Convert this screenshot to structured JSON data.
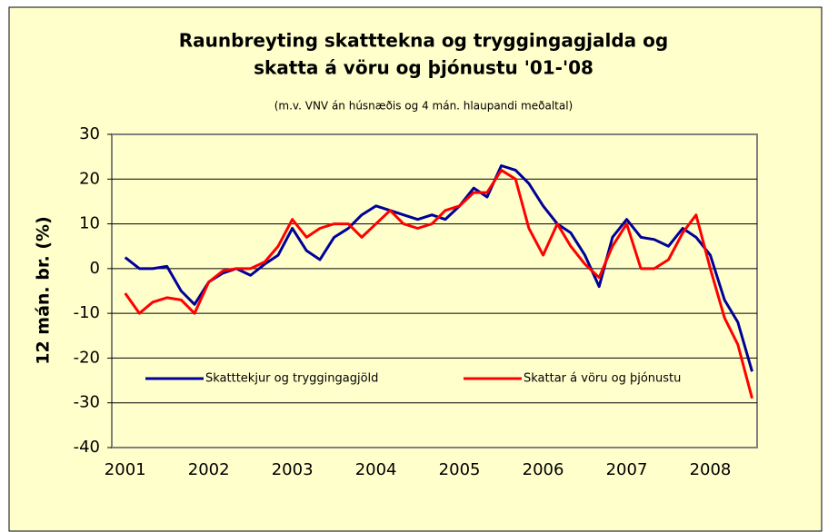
{
  "chart_data": {
    "type": "line",
    "title": [
      "Raunbreyting skatttekna og tryggingagjalda og",
      "skatta á vöru og þjónustu '01-'08"
    ],
    "subtitle": "(m.v. VNV án húsnæðis og 4 mán. hlaupandi meðaltal)",
    "y_label": "12 mán. br. (%)",
    "x": [
      2001,
      2001.17,
      2001.33,
      2001.5,
      2001.67,
      2001.83,
      2002,
      2002.17,
      2002.33,
      2002.5,
      2002.67,
      2002.83,
      2003,
      2003.17,
      2003.33,
      2003.5,
      2003.67,
      2003.83,
      2004,
      2004.17,
      2004.33,
      2004.5,
      2004.67,
      2004.83,
      2005,
      2005.17,
      2005.33,
      2005.5,
      2005.67,
      2005.83,
      2006,
      2006.17,
      2006.33,
      2006.5,
      2006.67,
      2006.83,
      2007,
      2007.17,
      2007.33,
      2007.5,
      2007.67,
      2007.83,
      2008,
      2008.17,
      2008.33,
      2008.5
    ],
    "series": [
      {
        "name": "Skatttekjur og tryggingagjöld",
        "color": "#000099",
        "values": [
          2.5,
          0,
          0,
          0.5,
          -5,
          -8,
          -3,
          -1,
          0,
          -1.5,
          1,
          3,
          9,
          4,
          2,
          7,
          9,
          12,
          14,
          13,
          12,
          11,
          12,
          11,
          14,
          18,
          16,
          23,
          22,
          19,
          14,
          10,
          8,
          3,
          -4,
          7,
          11,
          7,
          6.5,
          5,
          9,
          7,
          3,
          -7,
          -12,
          -23
        ]
      },
      {
        "name": "Skattar á vöru og þjónustu",
        "color": "#ff0000",
        "values": [
          -5.5,
          -10,
          -7.5,
          -6.5,
          -7,
          -10,
          -3,
          -0.5,
          0,
          0,
          1.5,
          5,
          11,
          7,
          9,
          10,
          10,
          7,
          10,
          13,
          10,
          9,
          10,
          13,
          14,
          17,
          17,
          22,
          20,
          9,
          3,
          10,
          5,
          1,
          -2,
          5,
          10,
          0,
          0,
          2,
          8,
          12,
          0,
          -11,
          -17,
          -29
        ]
      }
    ],
    "xlim": [
      2000.84,
      2008.56
    ],
    "xticks": [
      2001,
      2002,
      2003,
      2004,
      2005,
      2006,
      2007,
      2008
    ],
    "ylim": [
      -40,
      30
    ],
    "yticks": [
      -40,
      -30,
      -20,
      -10,
      0,
      10,
      20,
      30
    ],
    "grid": true,
    "legend": "lower center"
  }
}
